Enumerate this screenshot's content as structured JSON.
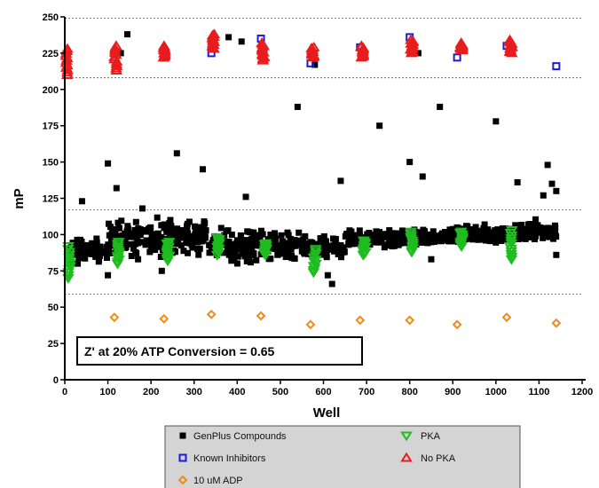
{
  "chart_data": {
    "type": "scatter",
    "title": "",
    "xlabel": "Well",
    "ylabel": "mP",
    "xlim": [
      0,
      1200
    ],
    "ylim": [
      0,
      250
    ],
    "xticks": [
      0,
      100,
      200,
      300,
      400,
      500,
      600,
      700,
      800,
      900,
      1000,
      1100,
      1200
    ],
    "yticks": [
      0,
      25,
      50,
      75,
      100,
      125,
      150,
      175,
      200,
      225,
      250
    ],
    "grid": false,
    "reference_lines_y": [
      59,
      117,
      208,
      249
    ],
    "annotation": "Z' at 20% ATP Conversion = 0.65",
    "legend_position": "bottom",
    "series": [
      {
        "name": "GenPlus Compounds",
        "marker": "square",
        "color": "#000000",
        "bulk_bands": [
          {
            "x": [
              10,
              100
            ],
            "y": [
              78,
              100
            ]
          },
          {
            "x": [
              100,
              330
            ],
            "y": [
              82,
              115
            ]
          },
          {
            "x": [
              330,
              460
            ],
            "y": [
              78,
              108
            ]
          },
          {
            "x": [
              460,
              560
            ],
            "y": [
              80,
              104
            ]
          },
          {
            "x": [
              560,
              650
            ],
            "y": [
              82,
              100
            ]
          },
          {
            "x": [
              650,
              780
            ],
            "y": [
              88,
              105
            ]
          },
          {
            "x": [
              780,
              900
            ],
            "y": [
              90,
              106
            ]
          },
          {
            "x": [
              900,
              1040
            ],
            "y": [
              92,
              108
            ]
          },
          {
            "x": [
              1040,
              1140
            ],
            "y": [
              92,
              112
            ]
          }
        ],
        "points": [
          [
            145,
            238
          ],
          [
            130,
            225
          ],
          [
            380,
            236
          ],
          [
            410,
            233
          ],
          [
            580,
            217
          ],
          [
            820,
            225
          ],
          [
            540,
            188
          ],
          [
            870,
            188
          ],
          [
            1000,
            178
          ],
          [
            730,
            175
          ],
          [
            100,
            149
          ],
          [
            800,
            150
          ],
          [
            260,
            156
          ],
          [
            1120,
            148
          ],
          [
            640,
            137
          ],
          [
            830,
            140
          ],
          [
            1050,
            136
          ],
          [
            120,
            132
          ],
          [
            420,
            126
          ],
          [
            1130,
            135
          ],
          [
            1110,
            127
          ],
          [
            1140,
            130
          ],
          [
            40,
            123
          ],
          [
            180,
            118
          ],
          [
            620,
            66
          ],
          [
            610,
            72
          ],
          [
            100,
            72
          ],
          [
            170,
            83
          ],
          [
            850,
            83
          ],
          [
            1140,
            86
          ],
          [
            320,
            145
          ],
          [
            30,
            80
          ],
          [
            225,
            75
          ]
        ]
      },
      {
        "name": "Known Inhibitors",
        "marker": "open-square",
        "color": "#1c1cd6",
        "points": [
          [
            115,
            225
          ],
          [
            230,
            222
          ],
          [
            340,
            225
          ],
          [
            455,
            235
          ],
          [
            570,
            218
          ],
          [
            685,
            229
          ],
          [
            800,
            236
          ],
          [
            910,
            222
          ],
          [
            1025,
            230
          ],
          [
            1140,
            216
          ]
        ]
      },
      {
        "name": "10 uM ADP",
        "marker": "open-diamond",
        "color": "#f08a1c",
        "points": [
          [
            115,
            43
          ],
          [
            230,
            42
          ],
          [
            340,
            45
          ],
          [
            455,
            44
          ],
          [
            570,
            38
          ],
          [
            685,
            41
          ],
          [
            800,
            41
          ],
          [
            910,
            38
          ],
          [
            1025,
            43
          ],
          [
            1140,
            39
          ]
        ]
      },
      {
        "name": "PKA",
        "marker": "triangle-down",
        "color": "#1ebc1e",
        "groups": [
          {
            "x": 10,
            "y": [
              70,
              92
            ]
          },
          {
            "x": 125,
            "y": [
              80,
              95
            ]
          },
          {
            "x": 240,
            "y": [
              82,
              95
            ]
          },
          {
            "x": 355,
            "y": [
              86,
              98
            ]
          },
          {
            "x": 465,
            "y": [
              86,
              94
            ]
          },
          {
            "x": 580,
            "y": [
              74,
              90
            ]
          },
          {
            "x": 695,
            "y": [
              86,
              96
            ]
          },
          {
            "x": 805,
            "y": [
              88,
              102
            ]
          },
          {
            "x": 920,
            "y": [
              92,
              102
            ]
          },
          {
            "x": 1035,
            "y": [
              83,
              103
            ]
          }
        ]
      },
      {
        "name": "No PKA",
        "marker": "open-triangle-up",
        "color": "#e81c1c",
        "groups": [
          {
            "x": 5,
            "y": [
              210,
              228
            ]
          },
          {
            "x": 118,
            "y": [
              213,
              230
            ]
          },
          {
            "x": 230,
            "y": [
              222,
              230
            ]
          },
          {
            "x": 345,
            "y": [
              228,
              238
            ]
          },
          {
            "x": 460,
            "y": [
              220,
              232
            ]
          },
          {
            "x": 575,
            "y": [
              222,
              229
            ]
          },
          {
            "x": 690,
            "y": [
              222,
              230
            ]
          },
          {
            "x": 805,
            "y": [
              225,
              234
            ]
          },
          {
            "x": 920,
            "y": [
              227,
              232
            ]
          },
          {
            "x": 1035,
            "y": [
              225,
              234
            ]
          }
        ]
      }
    ]
  }
}
